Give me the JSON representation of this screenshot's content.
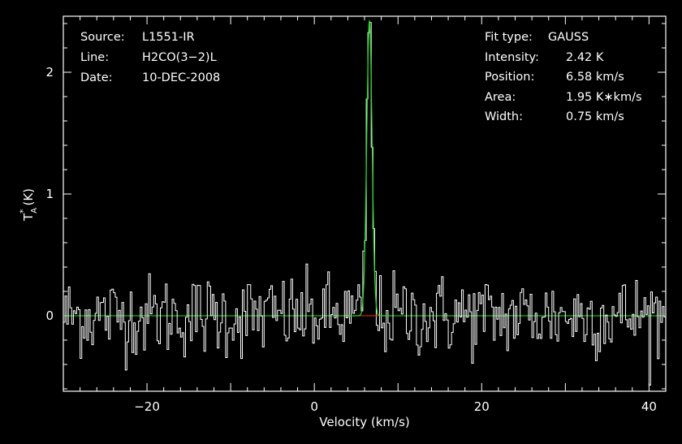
{
  "chart_data": {
    "type": "line",
    "xlabel": "Velocity (km/s)",
    "ylabel_main": "T",
    "ylabel_sup": "*",
    "ylabel_sub": "A",
    "ylabel_unit": "(K)",
    "xlim": [
      -30,
      42
    ],
    "ylim": [
      -0.62,
      2.46
    ],
    "x_ticks": [
      -20,
      0,
      20,
      40
    ],
    "x_tick_labels": [
      "−20",
      "0",
      "20",
      "40"
    ],
    "y_ticks": [
      0,
      1,
      2
    ],
    "y_tick_labels": [
      "0",
      "1",
      "2"
    ],
    "grid": false,
    "info_left": [
      {
        "label": "Source:",
        "value": "L1551-IR"
      },
      {
        "label": "Line:",
        "value": "H2CO(3−2)L"
      },
      {
        "label": "Date:",
        "value": "10-DEC-2008"
      }
    ],
    "info_right": [
      {
        "label": "Fit type:",
        "value": "GAUSS"
      },
      {
        "label": "Intensity:",
        "value": "2.42 K"
      },
      {
        "label": "Position:",
        "value": "6.58 km/s"
      },
      {
        "label": "Area:",
        "value": "1.95 K∗km/s"
      },
      {
        "label": "Width:",
        "value": "0.75 km/s"
      }
    ],
    "fit": {
      "amplitude": 2.42,
      "center": 6.58,
      "fwhm": 0.75
    },
    "noise_rms": 0.17,
    "channel_width": 0.2,
    "colors": {
      "spectrum": "#ffffff",
      "fit": "#22dd22",
      "residual": "#ff2222",
      "axes": "#ffffff"
    }
  }
}
